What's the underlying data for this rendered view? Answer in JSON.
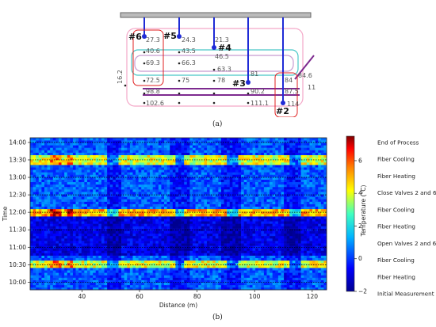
{
  "panel_a": {
    "caption": "(a)",
    "pipe_labels": [
      "#6",
      "#5",
      "#4",
      "#3",
      "#2"
    ],
    "depth_values": [
      {
        "v": "27.3"
      },
      {
        "v": "24.3"
      },
      {
        "v": "21.3"
      },
      {
        "v": "40.6"
      },
      {
        "v": "43.5"
      },
      {
        "v": "46.5"
      },
      {
        "v": "69.3"
      },
      {
        "v": "66.3"
      },
      {
        "v": "63.3"
      },
      {
        "v": "72.5"
      },
      {
        "v": "75"
      },
      {
        "v": "78"
      },
      {
        "v": "81"
      },
      {
        "v": "84"
      },
      {
        "v": "84.6"
      },
      {
        "v": "98.8"
      },
      {
        "v": "90.2"
      },
      {
        "v": "87.5"
      },
      {
        "v": "102.6"
      },
      {
        "v": "111.1"
      },
      {
        "v": "114"
      },
      {
        "v": "16.2"
      },
      {
        "v": "11"
      }
    ]
  },
  "panel_b": {
    "caption": "(b)",
    "colorbar_label": "Temperature (°C)",
    "colorbar_ticks": [
      "6",
      "4",
      "2",
      "0",
      "−2"
    ],
    "right_labels": [
      "End of Process",
      "Fiber Cooling",
      "Fiber Heating",
      "Close Valves 2 and 6",
      "Fiber Cooling",
      "Fiber Heating",
      "Open Valves 2 and 6",
      "Fiber Cooling",
      "Fiber Heating",
      "Initial Measurement"
    ]
  },
  "chart_data": {
    "type": "heatmap",
    "xlabel": "Distance (m)",
    "ylabel": "Time",
    "xlim": [
      22,
      125
    ],
    "x_ticks": [
      "40",
      "60",
      "80",
      "100",
      "120"
    ],
    "y_ticks": [
      "10:00",
      "10:30",
      "11:00",
      "11:30",
      "12:00",
      "12:30",
      "13:00",
      "13:30",
      "14:00"
    ],
    "colorbar_range": [
      -2,
      7.5
    ],
    "warm_bands_time": [
      {
        "from": "10:25",
        "to": "10:37",
        "value": 4
      },
      {
        "from": "11:53",
        "to": "12:08",
        "value": 5
      },
      {
        "from": "13:23",
        "to": "13:37",
        "value": 4
      }
    ]
  }
}
